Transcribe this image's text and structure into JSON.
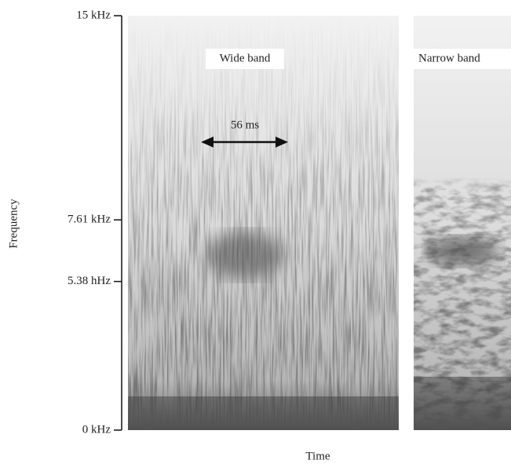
{
  "chart_data": {
    "type": "spectrogram",
    "ylabel": "Frequency",
    "xlabel": "Time",
    "ylim": [
      0,
      15
    ],
    "yticks": [
      {
        "value": 0,
        "label": "0 kHz"
      },
      {
        "value": 5.38,
        "label": "5.38 hHz"
      },
      {
        "value": 7.61,
        "label": "7.61 kHz"
      },
      {
        "value": 15,
        "label": "15 kHz"
      }
    ],
    "panels": [
      "Wide band",
      "Narrow band"
    ],
    "annotations": [
      "56 ms"
    ]
  }
}
